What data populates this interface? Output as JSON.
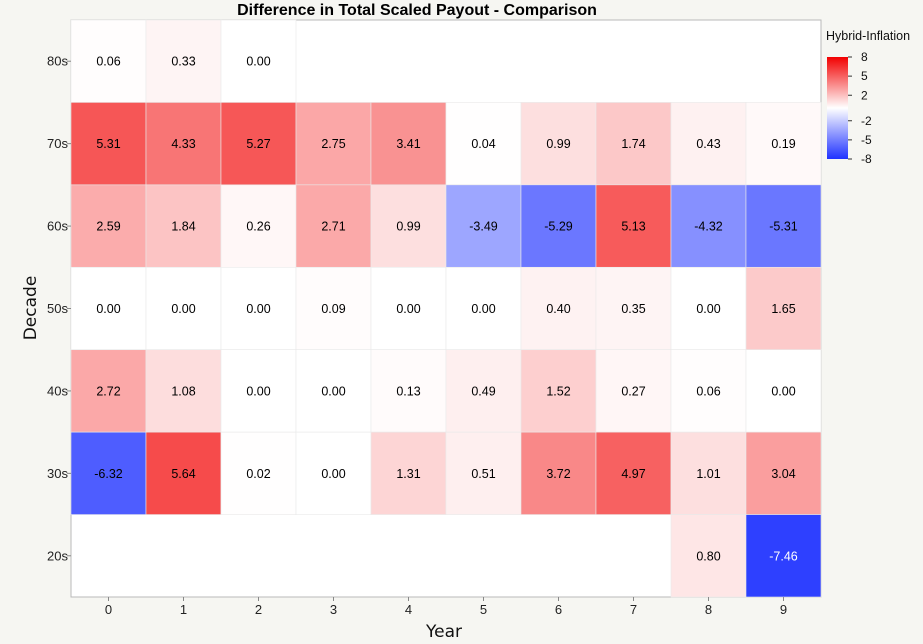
{
  "chart_data": {
    "type": "heatmap",
    "title": "Difference in Total Scaled Payout - Comparison",
    "xlabel": "Year",
    "ylabel": "Decade",
    "x_categories": [
      "0",
      "1",
      "2",
      "3",
      "4",
      "5",
      "6",
      "7",
      "8",
      "9"
    ],
    "y_categories": [
      "80s",
      "70s",
      "60s",
      "50s",
      "40s",
      "30s",
      "20s"
    ],
    "legend": {
      "title": "Hybrid-Inflation",
      "ticks": [
        8,
        5,
        2,
        -2,
        -5,
        -8
      ],
      "range": [
        -8,
        8
      ],
      "colors": {
        "high": "#f20000",
        "mid": "#ffffff",
        "low": "#1f32ff"
      },
      "placement": "right"
    },
    "grid": false,
    "values": [
      [
        0.06,
        0.33,
        0.0,
        null,
        null,
        null,
        null,
        null,
        null,
        null
      ],
      [
        5.31,
        4.33,
        5.27,
        2.75,
        3.41,
        0.04,
        0.99,
        1.74,
        0.43,
        0.19
      ],
      [
        2.59,
        1.84,
        0.26,
        2.71,
        0.99,
        -3.49,
        -5.29,
        5.13,
        -4.32,
        -5.31
      ],
      [
        0.0,
        0.0,
        0.0,
        0.09,
        0.0,
        0.0,
        0.4,
        0.35,
        0.0,
        1.65
      ],
      [
        2.72,
        1.08,
        0.0,
        0.0,
        0.13,
        0.49,
        1.52,
        0.27,
        0.06,
        0.0
      ],
      [
        -6.32,
        5.64,
        0.02,
        0.0,
        1.31,
        0.51,
        3.72,
        4.97,
        1.01,
        3.04
      ],
      [
        null,
        null,
        null,
        null,
        null,
        null,
        null,
        null,
        0.8,
        -7.46
      ]
    ]
  }
}
